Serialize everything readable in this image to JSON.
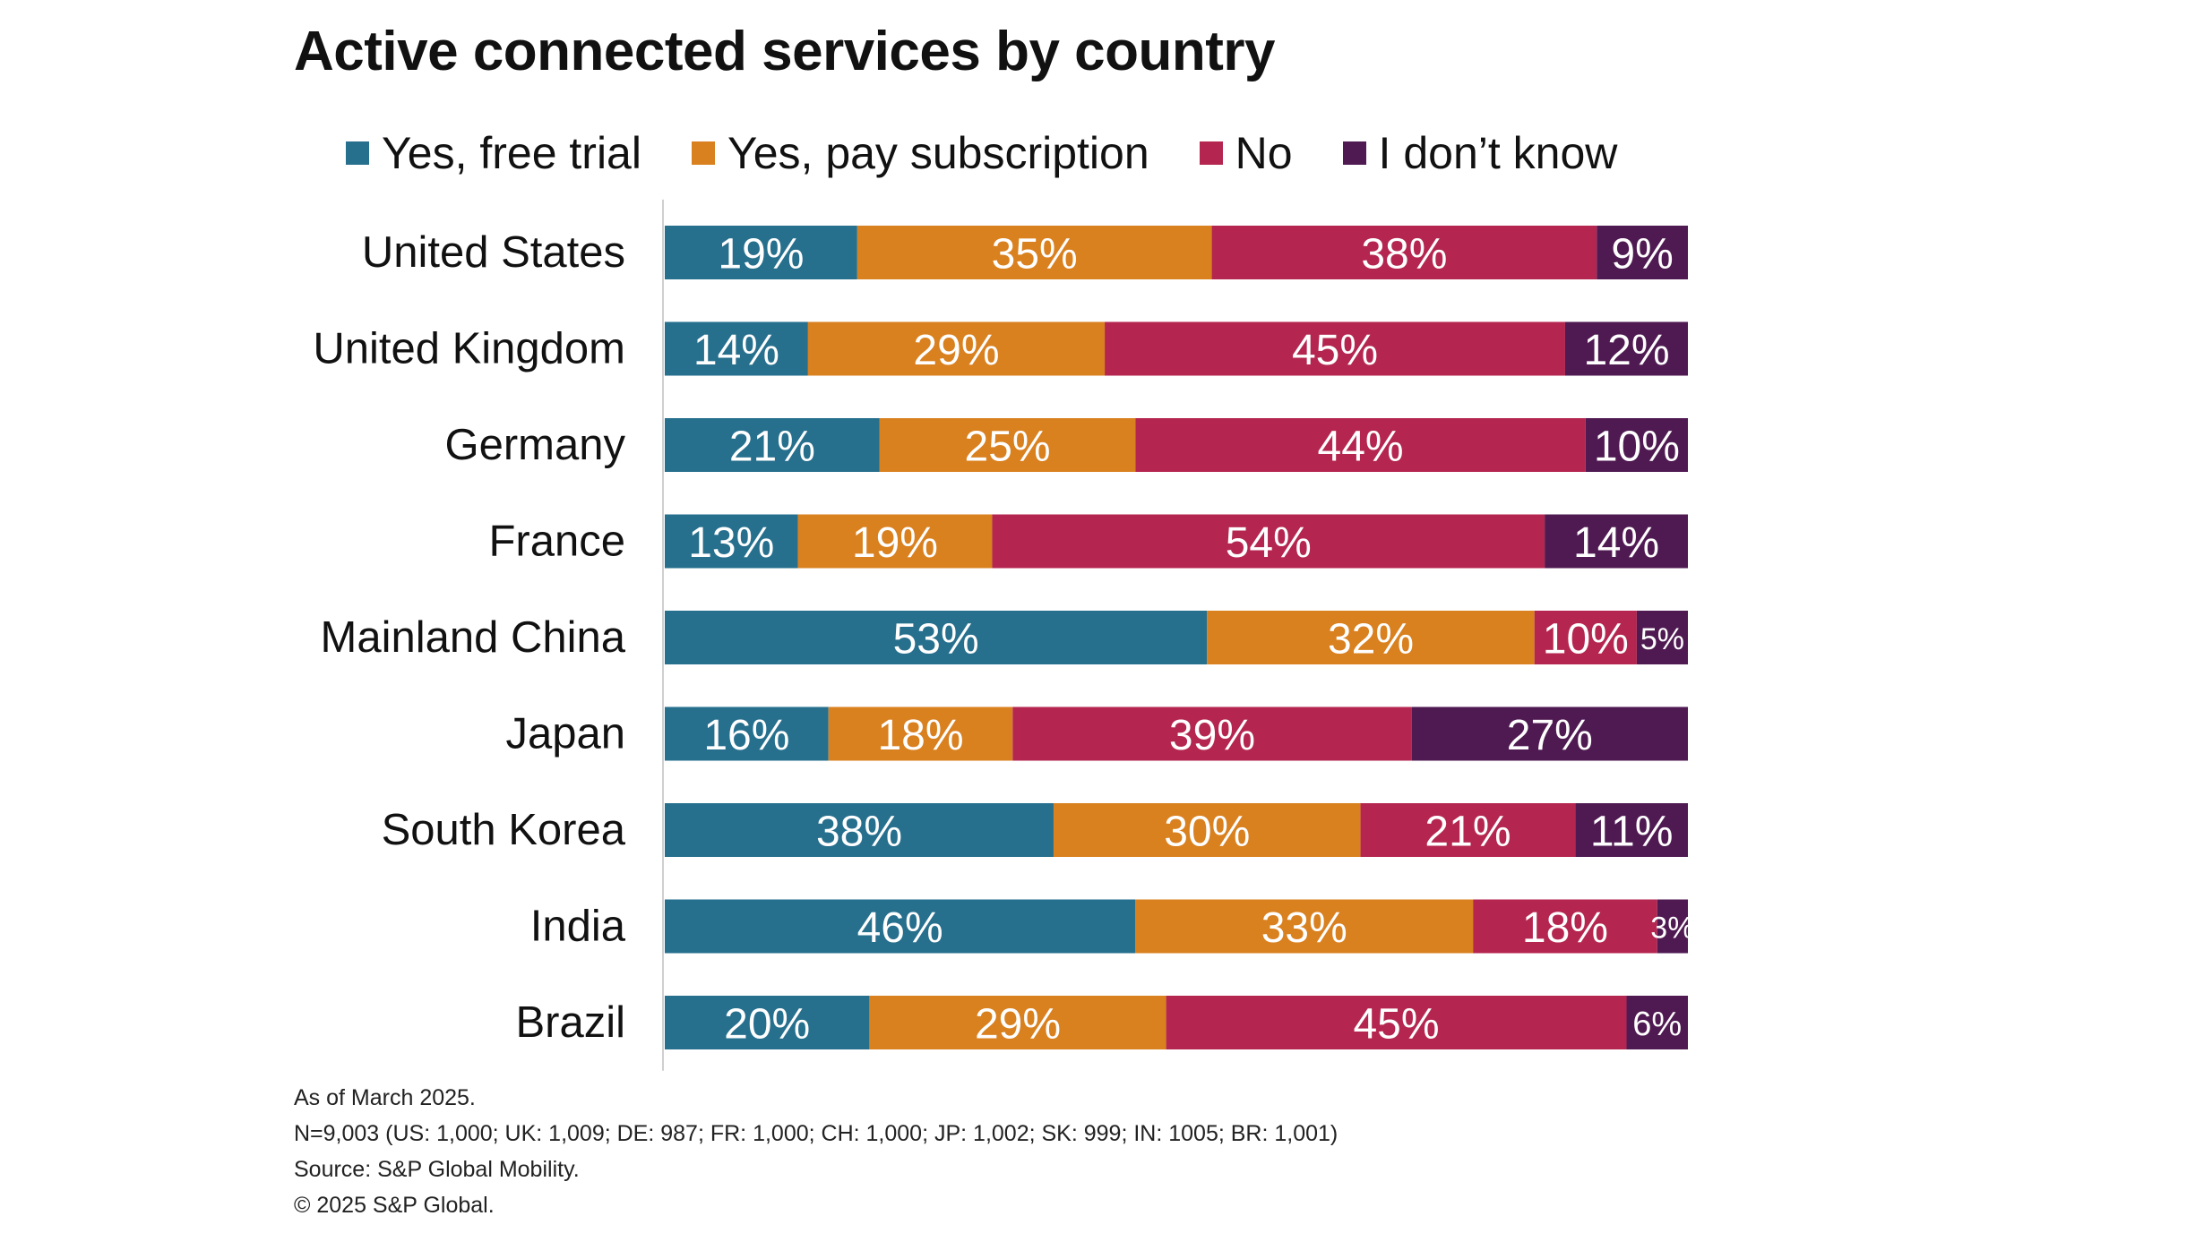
{
  "title": "Active connected services by country",
  "legend": [
    {
      "label": "Yes, free trial",
      "color": "#266f8d"
    },
    {
      "label": "Yes, pay subscription",
      "color": "#d9801f"
    },
    {
      "label": "No",
      "color": "#b4264f"
    },
    {
      "label": "I don’t know",
      "color": "#4f1a52"
    }
  ],
  "chart_data": {
    "type": "bar",
    "orientation": "horizontal",
    "stacked": true,
    "title": "Active connected services by country",
    "xlabel": "",
    "ylabel": "",
    "xlim": [
      0,
      100
    ],
    "legend_position": "top",
    "categories": [
      "United States",
      "United Kingdom",
      "Germany",
      "France",
      "Mainland China",
      "Japan",
      "South Korea",
      "India",
      "Brazil"
    ],
    "series": [
      {
        "name": "Yes, free trial",
        "color": "#266f8d",
        "values": [
          19,
          14,
          21,
          13,
          53,
          16,
          38,
          46,
          20
        ]
      },
      {
        "name": "Yes, pay subscription",
        "color": "#d9801f",
        "values": [
          35,
          29,
          25,
          19,
          32,
          18,
          30,
          33,
          29
        ]
      },
      {
        "name": "No",
        "color": "#b4264f",
        "values": [
          38,
          45,
          44,
          54,
          10,
          39,
          21,
          18,
          45
        ]
      },
      {
        "name": "I don’t know",
        "color": "#4f1a52",
        "values": [
          9,
          12,
          10,
          14,
          5,
          27,
          11,
          3,
          6
        ]
      }
    ]
  },
  "footnotes": {
    "date": "As of March 2025.",
    "sample": "N=9,003 (US: 1,000; UK: 1,009; DE: 987; FR: 1,000; CH: 1,000; JP: 1,002; SK: 999; IN: 1005; BR: 1,001)",
    "source": "Source: S&P Global Mobility.",
    "copyright": "© 2025 S&P Global."
  }
}
